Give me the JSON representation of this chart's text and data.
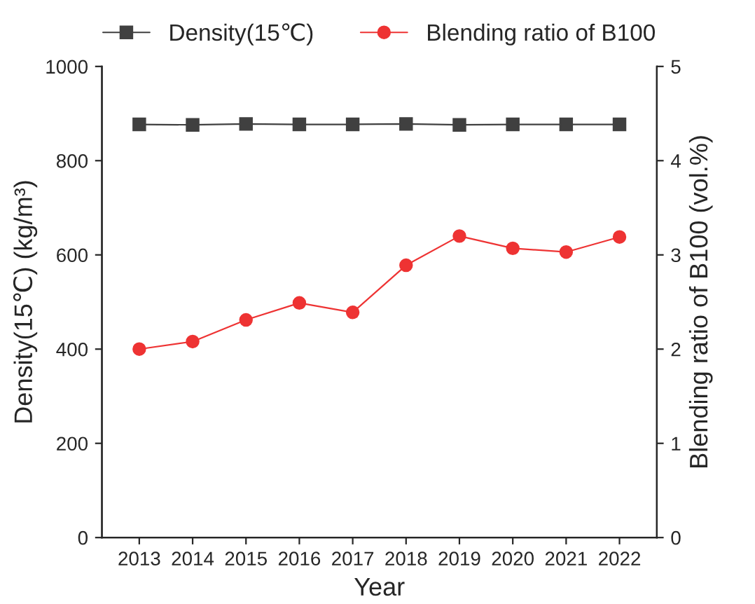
{
  "chart_data": {
    "type": "line",
    "xlabel": "Year",
    "ylabel": "Density(15℃) (kg/m³)",
    "y2label": "Blending ratio of B100 (vol.%)",
    "categories": [
      "2013",
      "2014",
      "2015",
      "2016",
      "2017",
      "2018",
      "2019",
      "2020",
      "2021",
      "2022"
    ],
    "series": [
      {
        "name": "Density(15℃)",
        "color": "#404040",
        "marker": "square",
        "values": [
          877,
          876,
          878,
          877,
          877,
          878,
          876,
          877,
          877,
          877
        ]
      },
      {
        "name": "Blending ratio of B100",
        "color": "#ee3333",
        "marker": "circle",
        "axis": "y2",
        "values": [
          2.0,
          2.08,
          2.31,
          2.49,
          2.39,
          2.89,
          3.2,
          3.07,
          3.03,
          3.19
        ]
      }
    ],
    "ylim": [
      0,
      1000
    ],
    "yticks": [
      0,
      200,
      400,
      600,
      800,
      1000
    ],
    "y2lim": [
      0,
      5
    ],
    "y2ticks": [
      0,
      1,
      2,
      3,
      4,
      5
    ],
    "legend": "top",
    "grid": false
  }
}
